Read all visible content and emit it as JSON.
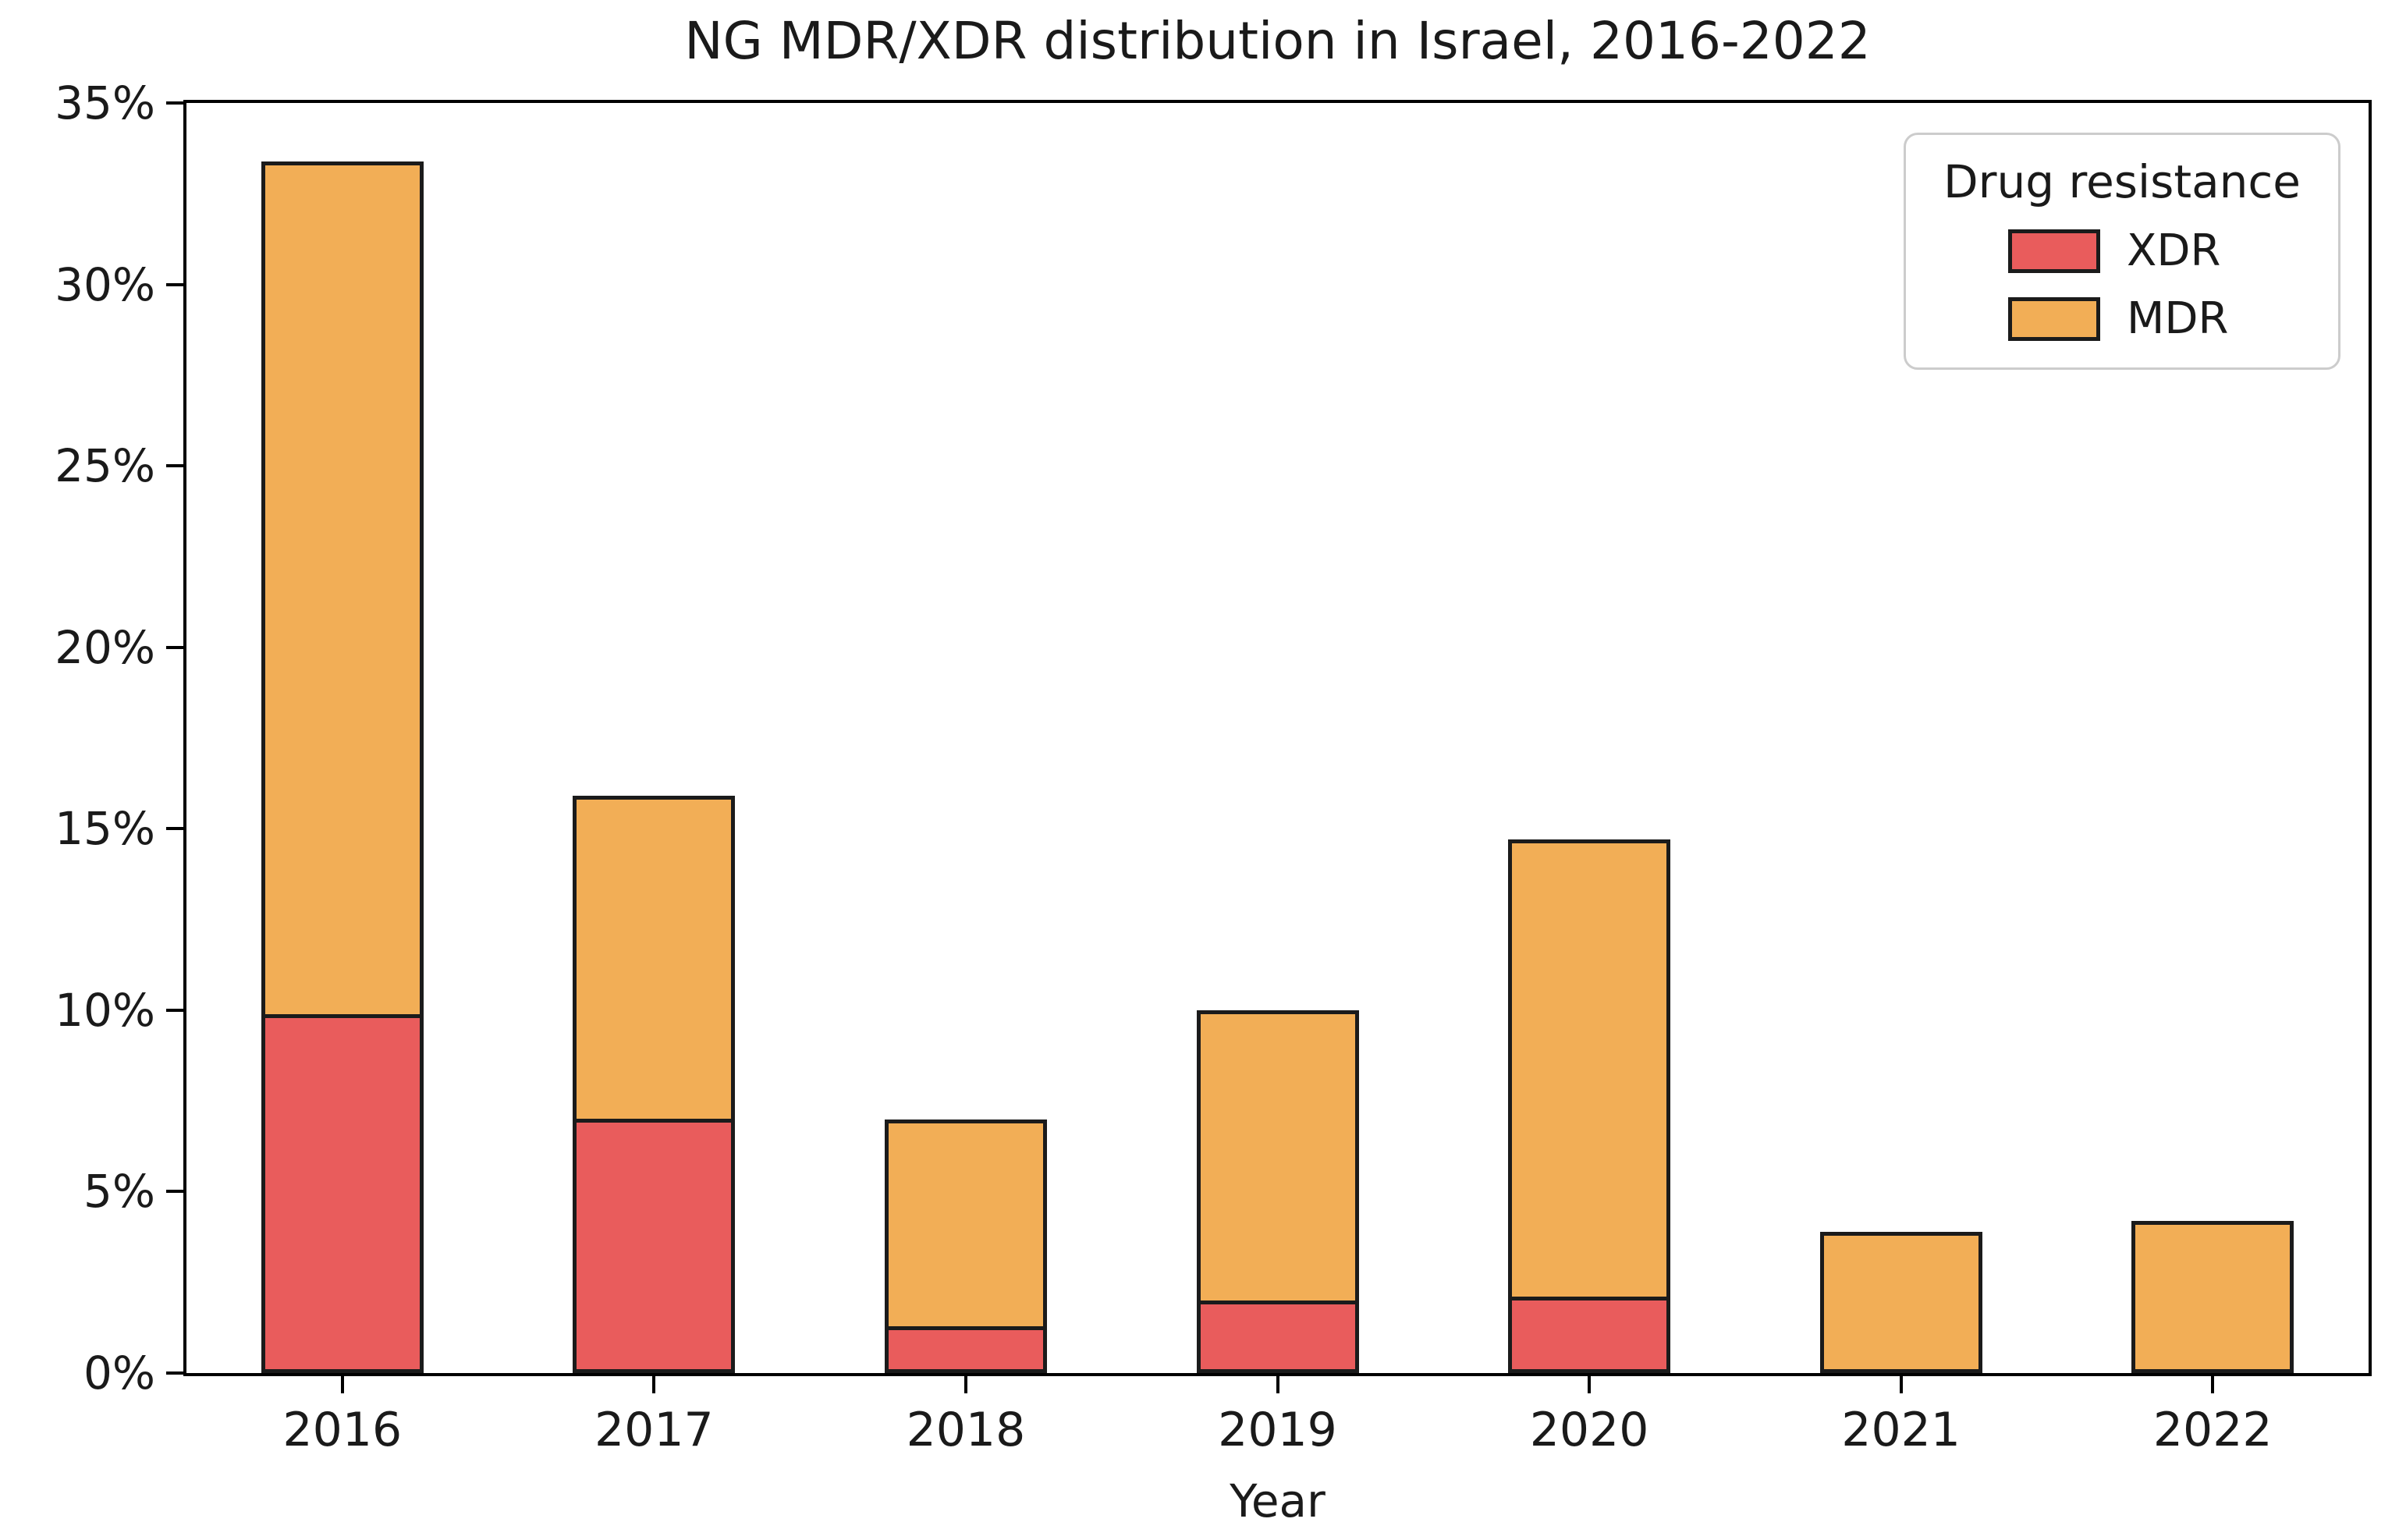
{
  "figure": {
    "title": "NG MDR/XDR distribution in Israel, 2016-2022",
    "xlabel": "Year"
  },
  "legend": {
    "title": "Drug resistance",
    "entries": [
      {
        "label": "XDR",
        "color": "#e95c5c"
      },
      {
        "label": "MDR",
        "color": "#f2ae56"
      }
    ]
  },
  "chart_data": {
    "type": "bar",
    "stacked": true,
    "title": "NG MDR/XDR distribution in Israel, 2016-2022",
    "xlabel": "Year",
    "ylabel": "",
    "categories": [
      "2016",
      "2017",
      "2018",
      "2019",
      "2020",
      "2021",
      "2022"
    ],
    "series": [
      {
        "name": "XDR",
        "color": "#e95c5c",
        "values": [
          9.9,
          7.0,
          1.3,
          2.0,
          2.1,
          0.0,
          0.0
        ]
      },
      {
        "name": "MDR",
        "color": "#f2ae56",
        "values": [
          23.5,
          8.9,
          5.7,
          8.0,
          12.6,
          3.9,
          4.2
        ]
      }
    ],
    "totals": [
      33.4,
      15.9,
      7.0,
      10.0,
      14.7,
      3.9,
      4.2
    ],
    "ylim": [
      0,
      35
    ],
    "yticks": [
      "0%",
      "5%",
      "10%",
      "15%",
      "20%",
      "25%",
      "30%",
      "35%"
    ],
    "grid": false,
    "legend_position": "upper right",
    "bar_edge_color": "#1b1b1b",
    "bar_width_fraction": 0.52
  }
}
